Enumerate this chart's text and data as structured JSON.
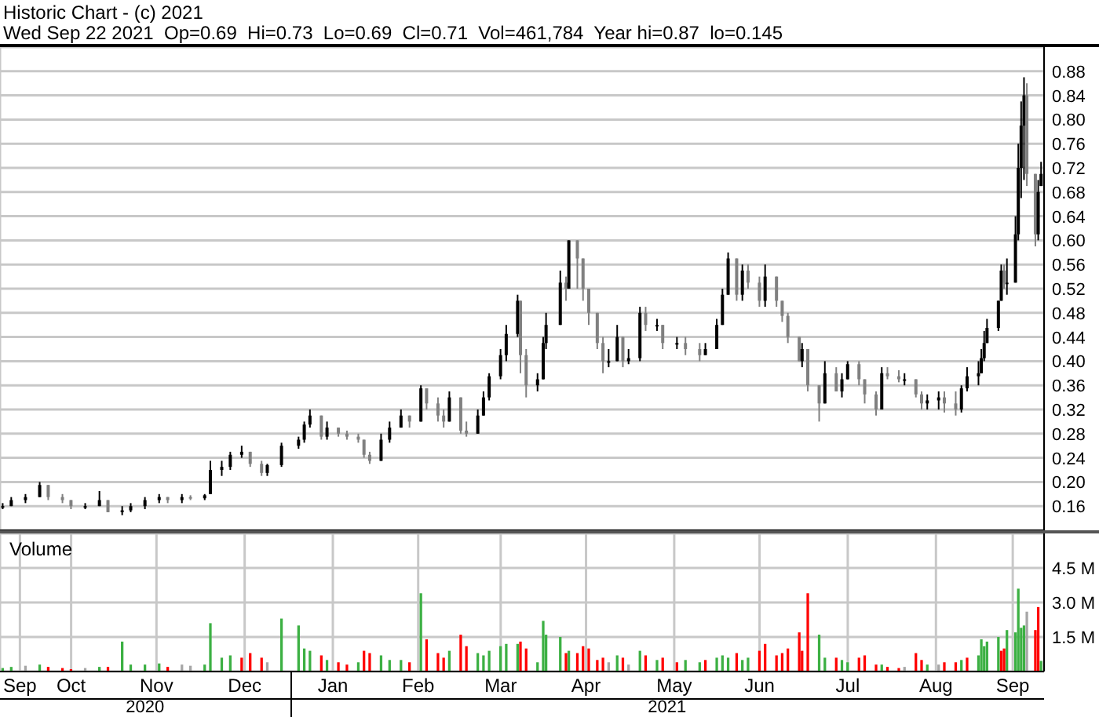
{
  "chart_data": [
    {
      "type": "candlestick",
      "title": "Historic Chart - (c) 2021",
      "subtitle": "Wed Sep 22 2021  Op=0.69  Hi=0.73  Lo=0.69  Cl=0.71  Vol=461,784  Year hi=0.87  lo=0.145",
      "colors": [
        "#000000",
        "#000000",
        "#000000",
        "#000000",
        "#808080",
        "#808080",
        "#808080",
        "#000000",
        "#000000",
        "#808080",
        "#000000",
        "#000000",
        "#000000",
        "#000000",
        "#808080",
        "#000000",
        "#808080",
        "#000000",
        "#000000",
        "#000000",
        "#000000",
        "#000000",
        "#808080",
        "#808080",
        "#000000",
        "#000000",
        "#000000",
        "#000000",
        "#000000",
        "#808080",
        "#000000",
        "#808080",
        "#808080",
        "#808080",
        "#808080",
        "#808080",
        "#000000",
        "#000000",
        "#000000",
        "#808080",
        "#000000",
        "#808080",
        "#808080",
        "#808080",
        "#000000",
        "#808080",
        "#808080",
        "#000000",
        "#000000",
        "#000000",
        "#000000",
        "#000000",
        "#000000",
        "#808080",
        "#808080",
        "#000000",
        "#000000",
        "#000000",
        "#000000",
        "#808080",
        "#000000",
        "#808080",
        "#808080",
        "#808080",
        "#808080",
        "#808080",
        "#000000",
        "#000000",
        "#808080",
        "#000000",
        "#000000",
        "#808080",
        "#000000",
        "#808080",
        "#000000",
        "#808080",
        "#808080",
        "#000000",
        "#000000",
        "#000000",
        "#000000",
        "#808080",
        "#000000",
        "#808080",
        "#808080",
        "#000000",
        "#808080",
        "#808080",
        "#808080",
        "#808080",
        "#000000",
        "#808080",
        "#808080",
        "#000000",
        "#808080",
        "#000000",
        "#000000",
        "#808080",
        "#808080",
        "#808080",
        "#000000",
        "#808080",
        "#808080",
        "#000000",
        "#808080",
        "#808080",
        "#000000",
        "#000000",
        "#808080",
        "#808080",
        "#000000",
        "#000000",
        "#000000",
        "#000000",
        "#000000",
        "#000000",
        "#000000",
        "#000000",
        "#808080",
        "#000000",
        "#000000",
        "#000000",
        "#000000",
        "#000000",
        "#808080",
        "#808080",
        "#000000",
        "#000000"
      ],
      "x": [
        "2020-09-22",
        "2020-09-25",
        "2020-09-30",
        "2020-10-05",
        "2020-10-08",
        "2020-10-13",
        "2020-10-16",
        "2020-10-21",
        "2020-10-26",
        "2020-10-29",
        "2020-11-03",
        "2020-11-06",
        "2020-11-11",
        "2020-11-16",
        "2020-11-19",
        "2020-11-24",
        "2020-11-27",
        "2020-12-02",
        "2020-12-04",
        "2020-12-08",
        "2020-12-11",
        "2020-12-15",
        "2020-12-18",
        "2020-12-22",
        "2020-12-24",
        "2020-12-29",
        "2021-01-04",
        "2021-01-06",
        "2021-01-08",
        "2021-01-12",
        "2021-01-14",
        "2021-01-18",
        "2021-01-21",
        "2021-01-25",
        "2021-01-27",
        "2021-01-29",
        "2021-02-02",
        "2021-02-05",
        "2021-02-09",
        "2021-02-12",
        "2021-02-16",
        "2021-02-18",
        "2021-02-22",
        "2021-02-24",
        "2021-02-26",
        "2021-03-02",
        "2021-03-04",
        "2021-03-08",
        "2021-03-10",
        "2021-03-12",
        "2021-03-16",
        "2021-03-18",
        "2021-03-22",
        "2021-03-23",
        "2021-03-25",
        "2021-03-29",
        "2021-03-31",
        "2021-04-01",
        "2021-04-06",
        "2021-04-08",
        "2021-04-09",
        "2021-04-12",
        "2021-04-14",
        "2021-04-16",
        "2021-04-19",
        "2021-04-21",
        "2021-04-23",
        "2021-04-26",
        "2021-04-28",
        "2021-04-30",
        "2021-05-04",
        "2021-05-06",
        "2021-05-10",
        "2021-05-12",
        "2021-05-17",
        "2021-05-20",
        "2021-05-25",
        "2021-05-27",
        "2021-05-31",
        "2021-06-02",
        "2021-06-04",
        "2021-06-07",
        "2021-06-09",
        "2021-06-11",
        "2021-06-15",
        "2021-06-17",
        "2021-06-21",
        "2021-06-23",
        "2021-06-25",
        "2021-06-29",
        "2021-06-30",
        "2021-07-02",
        "2021-07-06",
        "2021-07-08",
        "2021-07-12",
        "2021-07-14",
        "2021-07-16",
        "2021-07-20",
        "2021-07-22",
        "2021-07-26",
        "2021-07-28",
        "2021-07-30",
        "2021-08-03",
        "2021-08-05",
        "2021-08-09",
        "2021-08-11",
        "2021-08-13",
        "2021-08-17",
        "2021-08-19",
        "2021-08-23",
        "2021-08-25",
        "2021-08-27",
        "2021-08-31",
        "2021-09-01",
        "2021-09-02",
        "2021-09-03",
        "2021-09-07",
        "2021-09-08",
        "2021-09-09",
        "2021-09-10",
        "2021-09-13",
        "2021-09-14",
        "2021-09-15",
        "2021-09-16",
        "2021-09-17",
        "2021-09-20",
        "2021-09-21",
        "2021-09-22"
      ],
      "ohlc": [
        [
          0.16,
          0.165,
          0.155,
          0.16
        ],
        [
          0.16,
          0.175,
          0.16,
          0.17
        ],
        [
          0.17,
          0.18,
          0.165,
          0.175
        ],
        [
          0.175,
          0.2,
          0.175,
          0.195
        ],
        [
          0.195,
          0.195,
          0.17,
          0.175
        ],
        [
          0.175,
          0.18,
          0.165,
          0.17
        ],
        [
          0.17,
          0.17,
          0.155,
          0.16
        ],
        [
          0.16,
          0.165,
          0.155,
          0.16
        ],
        [
          0.16,
          0.185,
          0.16,
          0.17
        ],
        [
          0.17,
          0.17,
          0.15,
          0.15
        ],
        [
          0.15,
          0.16,
          0.145,
          0.153
        ],
        [
          0.153,
          0.165,
          0.15,
          0.16
        ],
        [
          0.16,
          0.175,
          0.155,
          0.17
        ],
        [
          0.17,
          0.18,
          0.165,
          0.175
        ],
        [
          0.175,
          0.175,
          0.165,
          0.17
        ],
        [
          0.17,
          0.18,
          0.165,
          0.175
        ],
        [
          0.175,
          0.178,
          0.17,
          0.173
        ],
        [
          0.173,
          0.18,
          0.17,
          0.178
        ],
        [
          0.18,
          0.235,
          0.18,
          0.22
        ],
        [
          0.22,
          0.235,
          0.21,
          0.225
        ],
        [
          0.225,
          0.25,
          0.22,
          0.245
        ],
        [
          0.245,
          0.26,
          0.24,
          0.25
        ],
        [
          0.25,
          0.25,
          0.225,
          0.23
        ],
        [
          0.23,
          0.235,
          0.21,
          0.215
        ],
        [
          0.215,
          0.23,
          0.21,
          0.228
        ],
        [
          0.228,
          0.265,
          0.225,
          0.26
        ],
        [
          0.26,
          0.275,
          0.255,
          0.27
        ],
        [
          0.27,
          0.3,
          0.265,
          0.295
        ],
        [
          0.295,
          0.32,
          0.29,
          0.31
        ],
        [
          0.31,
          0.31,
          0.27,
          0.275
        ],
        [
          0.275,
          0.3,
          0.27,
          0.29
        ],
        [
          0.29,
          0.29,
          0.275,
          0.28
        ],
        [
          0.28,
          0.285,
          0.27,
          0.275
        ],
        [
          0.275,
          0.28,
          0.265,
          0.27
        ],
        [
          0.27,
          0.27,
          0.24,
          0.245
        ],
        [
          0.245,
          0.25,
          0.23,
          0.235
        ],
        [
          0.235,
          0.28,
          0.235,
          0.27
        ],
        [
          0.27,
          0.3,
          0.265,
          0.29
        ],
        [
          0.29,
          0.32,
          0.29,
          0.31
        ],
        [
          0.31,
          0.31,
          0.29,
          0.3
        ],
        [
          0.3,
          0.36,
          0.3,
          0.355
        ],
        [
          0.355,
          0.355,
          0.32,
          0.33
        ],
        [
          0.33,
          0.34,
          0.3,
          0.31
        ],
        [
          0.31,
          0.32,
          0.29,
          0.3
        ],
        [
          0.3,
          0.35,
          0.3,
          0.34
        ],
        [
          0.34,
          0.34,
          0.28,
          0.285
        ],
        [
          0.285,
          0.3,
          0.275,
          0.28
        ],
        [
          0.28,
          0.32,
          0.28,
          0.31
        ],
        [
          0.31,
          0.35,
          0.31,
          0.34
        ],
        [
          0.34,
          0.38,
          0.335,
          0.375
        ],
        [
          0.375,
          0.42,
          0.37,
          0.41
        ],
        [
          0.41,
          0.46,
          0.4,
          0.445
        ],
        [
          0.445,
          0.51,
          0.44,
          0.5
        ],
        [
          0.5,
          0.5,
          0.38,
          0.41
        ],
        [
          0.41,
          0.42,
          0.34,
          0.36
        ],
        [
          0.36,
          0.38,
          0.35,
          0.37
        ],
        [
          0.37,
          0.44,
          0.37,
          0.43
        ],
        [
          0.43,
          0.48,
          0.42,
          0.46
        ],
        [
          0.46,
          0.55,
          0.46,
          0.53
        ],
        [
          0.53,
          0.54,
          0.5,
          0.52
        ],
        [
          0.52,
          0.6,
          0.52,
          0.6
        ],
        [
          0.6,
          0.6,
          0.52,
          0.57
        ],
        [
          0.57,
          0.57,
          0.5,
          0.52
        ],
        [
          0.52,
          0.52,
          0.46,
          0.48
        ],
        [
          0.48,
          0.48,
          0.42,
          0.43
        ],
        [
          0.43,
          0.44,
          0.38,
          0.4
        ],
        [
          0.4,
          0.42,
          0.39,
          0.4
        ],
        [
          0.4,
          0.46,
          0.4,
          0.44
        ],
        [
          0.44,
          0.44,
          0.39,
          0.4
        ],
        [
          0.4,
          0.42,
          0.395,
          0.405
        ],
        [
          0.405,
          0.49,
          0.4,
          0.48
        ],
        [
          0.48,
          0.49,
          0.45,
          0.46
        ],
        [
          0.46,
          0.47,
          0.45,
          0.46
        ],
        [
          0.46,
          0.46,
          0.42,
          0.43
        ],
        [
          0.43,
          0.44,
          0.42,
          0.43
        ],
        [
          0.43,
          0.44,
          0.41,
          0.42
        ],
        [
          0.42,
          0.43,
          0.4,
          0.41
        ],
        [
          0.41,
          0.43,
          0.41,
          0.42
        ],
        [
          0.42,
          0.47,
          0.42,
          0.46
        ],
        [
          0.46,
          0.52,
          0.46,
          0.51
        ],
        [
          0.51,
          0.58,
          0.51,
          0.57
        ],
        [
          0.57,
          0.57,
          0.5,
          0.51
        ],
        [
          0.51,
          0.56,
          0.5,
          0.55
        ],
        [
          0.55,
          0.56,
          0.52,
          0.53
        ],
        [
          0.53,
          0.54,
          0.49,
          0.5
        ],
        [
          0.5,
          0.56,
          0.49,
          0.54
        ],
        [
          0.54,
          0.54,
          0.49,
          0.5
        ],
        [
          0.5,
          0.5,
          0.465,
          0.475
        ],
        [
          0.475,
          0.48,
          0.43,
          0.44
        ],
        [
          0.44,
          0.44,
          0.4,
          0.4
        ],
        [
          0.4,
          0.43,
          0.39,
          0.42
        ],
        [
          0.42,
          0.42,
          0.35,
          0.36
        ],
        [
          0.36,
          0.36,
          0.3,
          0.33
        ],
        [
          0.33,
          0.4,
          0.33,
          0.38
        ],
        [
          0.38,
          0.39,
          0.35,
          0.35
        ],
        [
          0.35,
          0.38,
          0.34,
          0.37
        ],
        [
          0.37,
          0.4,
          0.37,
          0.395
        ],
        [
          0.395,
          0.4,
          0.36,
          0.37
        ],
        [
          0.37,
          0.37,
          0.33,
          0.345
        ],
        [
          0.345,
          0.35,
          0.31,
          0.32
        ],
        [
          0.32,
          0.39,
          0.32,
          0.38
        ],
        [
          0.38,
          0.39,
          0.37,
          0.375
        ],
        [
          0.375,
          0.385,
          0.365,
          0.37
        ],
        [
          0.37,
          0.38,
          0.36,
          0.37
        ],
        [
          0.37,
          0.37,
          0.34,
          0.345
        ],
        [
          0.345,
          0.35,
          0.32,
          0.33
        ],
        [
          0.33,
          0.345,
          0.32,
          0.335
        ],
        [
          0.335,
          0.35,
          0.32,
          0.34
        ],
        [
          0.34,
          0.35,
          0.315,
          0.33
        ],
        [
          0.33,
          0.35,
          0.31,
          0.32
        ],
        [
          0.32,
          0.36,
          0.315,
          0.355
        ],
        [
          0.355,
          0.39,
          0.35,
          0.375
        ],
        [
          0.375,
          0.4,
          0.36,
          0.38
        ],
        [
          0.38,
          0.42,
          0.38,
          0.405
        ],
        [
          0.405,
          0.45,
          0.4,
          0.43
        ],
        [
          0.43,
          0.47,
          0.43,
          0.455
        ],
        [
          0.455,
          0.5,
          0.45,
          0.5
        ],
        [
          0.5,
          0.56,
          0.5,
          0.55
        ],
        [
          0.55,
          0.56,
          0.52,
          0.53
        ],
        [
          0.53,
          0.57,
          0.51,
          0.53
        ],
        [
          0.53,
          0.64,
          0.53,
          0.61
        ],
        [
          0.61,
          0.76,
          0.6,
          0.72
        ],
        [
          0.72,
          0.83,
          0.67,
          0.79
        ],
        [
          0.79,
          0.87,
          0.7,
          0.84
        ],
        [
          0.84,
          0.86,
          0.69,
          0.71
        ],
        [
          0.71,
          0.71,
          0.59,
          0.61
        ],
        [
          0.61,
          0.7,
          0.6,
          0.68
        ],
        [
          0.69,
          0.73,
          0.69,
          0.71
        ]
      ],
      "xlim": [
        "2020-09-21",
        "2021-09-23"
      ],
      "xticks": [
        {
          "value": "2020-09-28",
          "label": null
        },
        {
          "value": "2020-10-16",
          "label": null
        },
        {
          "value": "2020-11-15",
          "label": null
        },
        {
          "value": "2020-12-16",
          "label": null
        },
        {
          "value": "2021-01-16",
          "label": null
        },
        {
          "value": "2021-02-15",
          "label": null
        },
        {
          "value": "2021-03-16",
          "label": null
        },
        {
          "value": "2021-04-15",
          "label": null
        },
        {
          "value": "2021-05-16",
          "label": null
        },
        {
          "value": "2021-06-15",
          "label": null
        },
        {
          "value": "2021-07-16",
          "label": null
        },
        {
          "value": "2021-08-16",
          "label": null
        },
        {
          "value": "2021-09-12",
          "label": null
        }
      ],
      "ylim": [
        0.12,
        0.92
      ],
      "yticks": [
        {
          "value": 0.16,
          "label": "0.16"
        },
        {
          "value": 0.2,
          "label": "0.20"
        },
        {
          "value": 0.24,
          "label": "0.24"
        },
        {
          "value": 0.28,
          "label": "0.28"
        },
        {
          "value": 0.32,
          "label": "0.32"
        },
        {
          "value": 0.36,
          "label": "0.36"
        },
        {
          "value": 0.4,
          "label": "0.40"
        },
        {
          "value": 0.44,
          "label": "0.44"
        },
        {
          "value": 0.48,
          "label": "0.48"
        },
        {
          "value": 0.52,
          "label": "0.52"
        },
        {
          "value": 0.56,
          "label": "0.56"
        },
        {
          "value": 0.6,
          "label": "0.60"
        },
        {
          "value": 0.64,
          "label": "0.64"
        },
        {
          "value": 0.68,
          "label": "0.68"
        },
        {
          "value": 0.72,
          "label": "0.72"
        },
        {
          "value": 0.76,
          "label": "0.76"
        },
        {
          "value": 0.8,
          "label": "0.80"
        },
        {
          "value": 0.84,
          "label": "0.84"
        },
        {
          "value": 0.88,
          "label": "0.88"
        }
      ],
      "grid": true,
      "tick_labels": "y"
    },
    {
      "type": "bar",
      "title": "Volume",
      "x": [
        "2020-09-22",
        "2020-09-25",
        "2020-09-30",
        "2020-10-05",
        "2020-10-08",
        "2020-10-13",
        "2020-10-16",
        "2020-10-21",
        "2020-10-26",
        "2020-10-29",
        "2020-11-03",
        "2020-11-06",
        "2020-11-11",
        "2020-11-16",
        "2020-11-19",
        "2020-11-24",
        "2020-11-27",
        "2020-12-02",
        "2020-12-04",
        "2020-12-08",
        "2020-12-11",
        "2020-12-15",
        "2020-12-18",
        "2020-12-22",
        "2020-12-24",
        "2020-12-29",
        "2021-01-04",
        "2021-01-06",
        "2021-01-08",
        "2021-01-12",
        "2021-01-14",
        "2021-01-18",
        "2021-01-21",
        "2021-01-25",
        "2021-01-27",
        "2021-01-29",
        "2021-02-02",
        "2021-02-05",
        "2021-02-09",
        "2021-02-12",
        "2021-02-16",
        "2021-02-18",
        "2021-02-22",
        "2021-02-24",
        "2021-02-26",
        "2021-03-02",
        "2021-03-04",
        "2021-03-08",
        "2021-03-10",
        "2021-03-12",
        "2021-03-16",
        "2021-03-18",
        "2021-03-22",
        "2021-03-23",
        "2021-03-25",
        "2021-03-29",
        "2021-03-31",
        "2021-04-01",
        "2021-04-06",
        "2021-04-08",
        "2021-04-09",
        "2021-04-12",
        "2021-04-14",
        "2021-04-16",
        "2021-04-19",
        "2021-04-21",
        "2021-04-23",
        "2021-04-26",
        "2021-04-28",
        "2021-04-30",
        "2021-05-04",
        "2021-05-06",
        "2021-05-10",
        "2021-05-12",
        "2021-05-17",
        "2021-05-20",
        "2021-05-25",
        "2021-05-27",
        "2021-05-31",
        "2021-06-02",
        "2021-06-04",
        "2021-06-07",
        "2021-06-09",
        "2021-06-11",
        "2021-06-15",
        "2021-06-17",
        "2021-06-21",
        "2021-06-23",
        "2021-06-25",
        "2021-06-29",
        "2021-06-30",
        "2021-07-02",
        "2021-07-06",
        "2021-07-08",
        "2021-07-12",
        "2021-07-14",
        "2021-07-16",
        "2021-07-20",
        "2021-07-22",
        "2021-07-26",
        "2021-07-28",
        "2021-07-30",
        "2021-08-03",
        "2021-08-05",
        "2021-08-09",
        "2021-08-11",
        "2021-08-13",
        "2021-08-17",
        "2021-08-19",
        "2021-08-23",
        "2021-08-25",
        "2021-08-27",
        "2021-08-31",
        "2021-09-01",
        "2021-09-02",
        "2021-09-03",
        "2021-09-07",
        "2021-09-08",
        "2021-09-09",
        "2021-09-10",
        "2021-09-13",
        "2021-09-14",
        "2021-09-15",
        "2021-09-16",
        "2021-09-17",
        "2021-09-20",
        "2021-09-21",
        "2021-09-22"
      ],
      "values": [
        0.15,
        0.2,
        0.25,
        0.3,
        0.2,
        0.15,
        0.1,
        0.15,
        0.2,
        0.2,
        1.3,
        0.3,
        0.3,
        0.35,
        0.2,
        0.3,
        0.25,
        0.3,
        2.1,
        0.6,
        0.7,
        0.6,
        0.8,
        0.6,
        0.4,
        2.3,
        2.0,
        1.0,
        0.9,
        0.7,
        0.5,
        0.4,
        0.3,
        0.4,
        0.9,
        0.8,
        0.7,
        0.5,
        0.5,
        0.4,
        3.4,
        1.4,
        0.8,
        0.6,
        0.9,
        1.6,
        1.1,
        0.8,
        0.7,
        0.9,
        1.1,
        1.2,
        1.2,
        1.3,
        1.0,
        0.4,
        2.2,
        1.6,
        1.5,
        0.8,
        0.9,
        0.8,
        1.1,
        1.0,
        0.5,
        0.6,
        0.4,
        0.7,
        0.6,
        0.3,
        0.9,
        0.7,
        0.5,
        0.6,
        0.4,
        0.5,
        0.4,
        0.5,
        0.6,
        0.7,
        0.6,
        0.8,
        0.5,
        0.6,
        0.9,
        1.2,
        0.7,
        0.8,
        1.0,
        1.7,
        0.9,
        3.4,
        1.6,
        0.6,
        0.6,
        0.5,
        0.4,
        0.6,
        0.7,
        0.3,
        0.3,
        0.2,
        0.15,
        0.2,
        0.8,
        0.5,
        0.3,
        0.3,
        0.4,
        0.4,
        0.5,
        0.6,
        0.7,
        1.4,
        1.1,
        1.3,
        1.5,
        0.9,
        1.0,
        1.8,
        1.7,
        3.6,
        1.9,
        2.0,
        2.6,
        1.8,
        2.8,
        0.46
      ],
      "colors": [
        "#3cb043",
        "#3cb043",
        "#a6a6a6",
        "#3cb043",
        "#ff0000",
        "#ff0000",
        "#ff0000",
        "#a6a6a6",
        "#3cb043",
        "#ff0000",
        "#3cb043",
        "#3cb043",
        "#3cb043",
        "#3cb043",
        "#ff0000",
        "#a6a6a6",
        "#a6a6a6",
        "#3cb043",
        "#3cb043",
        "#3cb043",
        "#3cb043",
        "#ff0000",
        "#ff0000",
        "#ff0000",
        "#a6a6a6",
        "#3cb043",
        "#3cb043",
        "#3cb043",
        "#3cb043",
        "#ff0000",
        "#3cb043",
        "#ff0000",
        "#ff0000",
        "#3cb043",
        "#ff0000",
        "#ff0000",
        "#3cb043",
        "#3cb043",
        "#3cb043",
        "#ff0000",
        "#3cb043",
        "#ff0000",
        "#ff0000",
        "#ff0000",
        "#3cb043",
        "#ff0000",
        "#ff0000",
        "#3cb043",
        "#3cb043",
        "#3cb043",
        "#3cb043",
        "#3cb043",
        "#3cb043",
        "#ff0000",
        "#ff0000",
        "#3cb043",
        "#3cb043",
        "#3cb043",
        "#3cb043",
        "#ff0000",
        "#3cb043",
        "#ff0000",
        "#ff0000",
        "#ff0000",
        "#ff0000",
        "#ff0000",
        "#a6a6a6",
        "#3cb043",
        "#ff0000",
        "#a6a6a6",
        "#3cb043",
        "#ff0000",
        "#3cb043",
        "#ff0000",
        "#ff0000",
        "#3cb043",
        "#3cb043",
        "#ff0000",
        "#3cb043",
        "#3cb043",
        "#3cb043",
        "#ff0000",
        "#3cb043",
        "#3cb043",
        "#ff0000",
        "#ff0000",
        "#ff0000",
        "#ff0000",
        "#ff0000",
        "#ff0000",
        "#ff0000",
        "#ff0000",
        "#3cb043",
        "#3cb043",
        "#ff0000",
        "#3cb043",
        "#3cb043",
        "#ff0000",
        "#ff0000",
        "#ff0000",
        "#3cb043",
        "#ff0000",
        "#ff0000",
        "#a6a6a6",
        "#ff0000",
        "#ff0000",
        "#3cb043",
        "#a6a6a6",
        "#ff0000",
        "#ff0000",
        "#3cb043",
        "#ff0000",
        "#3cb043",
        "#3cb043",
        "#3cb043",
        "#3cb043",
        "#3cb043",
        "#ff0000",
        "#ff0000",
        "#3cb043",
        "#3cb043",
        "#3cb043",
        "#3cb043",
        "#3cb043",
        "#a6a6a6",
        "#ff0000",
        "#ff0000",
        "#3cb043"
      ],
      "xlim": [
        "2020-09-21",
        "2021-09-23"
      ],
      "xticks": [
        {
          "value": "2020-09-28",
          "label": "Sep"
        },
        {
          "value": "2020-10-16",
          "label": "Oct"
        },
        {
          "value": "2020-11-15",
          "label": "Nov"
        },
        {
          "value": "2020-12-16",
          "label": "Dec"
        },
        {
          "value": "2021-01-16",
          "label": "Jan"
        },
        {
          "value": "2021-02-15",
          "label": "Feb"
        },
        {
          "value": "2021-03-16",
          "label": "Mar"
        },
        {
          "value": "2021-04-15",
          "label": "Apr"
        },
        {
          "value": "2021-05-16",
          "label": "May"
        },
        {
          "value": "2021-06-15",
          "label": "Jun"
        },
        {
          "value": "2021-07-16",
          "label": "Jul"
        },
        {
          "value": "2021-08-16",
          "label": "Aug"
        },
        {
          "value": "2021-09-12",
          "label": "Sep"
        }
      ],
      "ylim": [
        0,
        6
      ],
      "yticks": [
        {
          "value": 1.5,
          "label": "1.5 M"
        },
        {
          "value": 3,
          "label": "3.0 M"
        },
        {
          "value": 4.5,
          "label": "4.5 M"
        }
      ],
      "grid": true,
      "annotations": [
        "2020",
        "2021"
      ]
    }
  ]
}
